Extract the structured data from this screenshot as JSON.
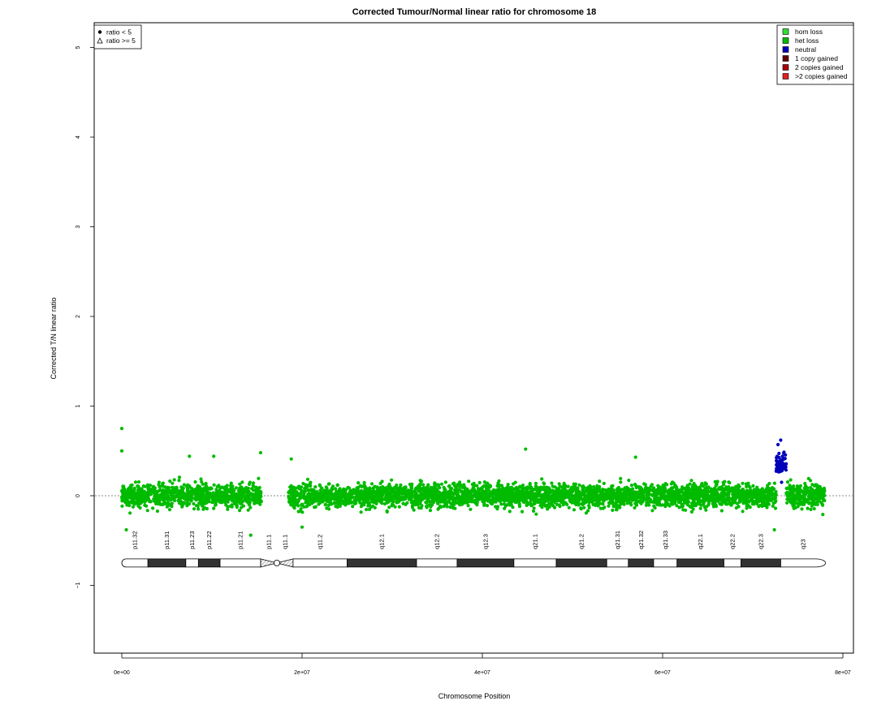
{
  "chart_data": {
    "type": "scatter",
    "title": "Corrected Tumour/Normal linear ratio for chromosome  18",
    "xlabel": "Chromosome Position",
    "ylabel": "Corrected T/N linear ratio",
    "xlim": [
      0,
      80000000
    ],
    "ylim": [
      -1.8,
      5.3
    ],
    "x_ticks": [
      {
        "value": 0,
        "label": "0e+00"
      },
      {
        "value": 20000000,
        "label": "2e+07"
      },
      {
        "value": 40000000,
        "label": "4e+07"
      },
      {
        "value": 60000000,
        "label": "6e+07"
      },
      {
        "value": 80000000,
        "label": "8e+07"
      }
    ],
    "y_ticks": [
      {
        "value": -1,
        "label": "−1"
      },
      {
        "value": 0,
        "label": "0"
      },
      {
        "value": 1,
        "label": "1"
      },
      {
        "value": 2,
        "label": "2"
      },
      {
        "value": 3,
        "label": "3"
      },
      {
        "value": 4,
        "label": "4"
      },
      {
        "value": 5,
        "label": "5"
      }
    ],
    "reference_line_y": 0,
    "shape_legend": {
      "position": "top-left",
      "entries": [
        {
          "symbol": "filled-circle",
          "label": "ratio < 5"
        },
        {
          "symbol": "open-triangle",
          "label": "ratio >= 5"
        }
      ]
    },
    "color_legend": {
      "position": "top-right",
      "entries": [
        {
          "label": "hom loss",
          "color": "#33dd33"
        },
        {
          "label": "het loss",
          "color": "#00bb00"
        },
        {
          "label": "neutral",
          "color": "#0000bb"
        },
        {
          "label": "1 copy gained",
          "color": "#660000"
        },
        {
          "label": "2 copies gained",
          "color": "#aa0000"
        },
        {
          "label": ">2 copies gained",
          "color": "#dd2222"
        }
      ]
    },
    "series": [
      {
        "name": "het loss",
        "color": "#00bb00",
        "segments": [
          {
            "x_start": 0,
            "x_end": 15500000,
            "mean": 0.0,
            "spread": 0.15
          },
          {
            "x_start": 18500000,
            "x_end": 72600000,
            "mean": 0.0,
            "spread": 0.15
          },
          {
            "x_start": 73700000,
            "x_end": 78000000,
            "mean": 0.0,
            "spread": 0.15
          }
        ],
        "highlight_points": [
          {
            "x": 0,
            "y": 0.75
          },
          {
            "x": 0,
            "y": 0.5
          },
          {
            "x": 500000,
            "y": -0.38
          },
          {
            "x": 7500000,
            "y": 0.44
          },
          {
            "x": 10200000,
            "y": 0.44
          },
          {
            "x": 14300000,
            "y": -0.44
          },
          {
            "x": 15400000,
            "y": 0.48
          },
          {
            "x": 18800000,
            "y": 0.41
          },
          {
            "x": 44800000,
            "y": 0.52
          },
          {
            "x": 57000000,
            "y": 0.43
          },
          {
            "x": 20000000,
            "y": -0.35
          },
          {
            "x": 72400000,
            "y": -0.38
          }
        ]
      },
      {
        "name": "neutral",
        "color": "#0000bb",
        "segments": [
          {
            "x_start": 72600000,
            "x_end": 73700000,
            "mean": 0.35,
            "spread": 0.12
          }
        ],
        "highlight_points": [
          {
            "x": 73100000,
            "y": 0.62
          },
          {
            "x": 72800000,
            "y": 0.57
          },
          {
            "x": 73200000,
            "y": 0.15
          }
        ]
      }
    ],
    "ideogram": {
      "y_level": -0.75,
      "bands": [
        {
          "name": "p11.32",
          "start": 0,
          "end": 2900000,
          "stain": "gneg"
        },
        {
          "name": "p11.31",
          "start": 2900000,
          "end": 7100000,
          "stain": "gpos"
        },
        {
          "name": "p11.23",
          "start": 7100000,
          "end": 8500000,
          "stain": "gneg"
        },
        {
          "name": "p11.22",
          "start": 8500000,
          "end": 10900000,
          "stain": "gpos"
        },
        {
          "name": "p11.21",
          "start": 10900000,
          "end": 15400000,
          "stain": "gneg"
        },
        {
          "name": "p11.1",
          "start": 15400000,
          "end": 17200000,
          "stain": "acen"
        },
        {
          "name": "q11.1",
          "start": 17200000,
          "end": 19000000,
          "stain": "acen"
        },
        {
          "name": "q11.2",
          "start": 19000000,
          "end": 25000000,
          "stain": "gneg"
        },
        {
          "name": "q12.1",
          "start": 25000000,
          "end": 32700000,
          "stain": "gpos"
        },
        {
          "name": "q12.2",
          "start": 32700000,
          "end": 37200000,
          "stain": "gneg"
        },
        {
          "name": "q12.3",
          "start": 37200000,
          "end": 43500000,
          "stain": "gpos"
        },
        {
          "name": "q21.1",
          "start": 43500000,
          "end": 48200000,
          "stain": "gneg"
        },
        {
          "name": "q21.2",
          "start": 48200000,
          "end": 53800000,
          "stain": "gpos"
        },
        {
          "name": "q21.31",
          "start": 53800000,
          "end": 56200000,
          "stain": "gneg"
        },
        {
          "name": "q21.32",
          "start": 56200000,
          "end": 59000000,
          "stain": "gpos"
        },
        {
          "name": "q21.33",
          "start": 59000000,
          "end": 61600000,
          "stain": "gneg"
        },
        {
          "name": "q22.1",
          "start": 61600000,
          "end": 66800000,
          "stain": "gpos"
        },
        {
          "name": "q22.2",
          "start": 66800000,
          "end": 68700000,
          "stain": "gneg"
        },
        {
          "name": "q22.3",
          "start": 68700000,
          "end": 73100000,
          "stain": "gpos"
        },
        {
          "name": "q23",
          "start": 73100000,
          "end": 78077248,
          "stain": "gneg"
        }
      ]
    }
  }
}
